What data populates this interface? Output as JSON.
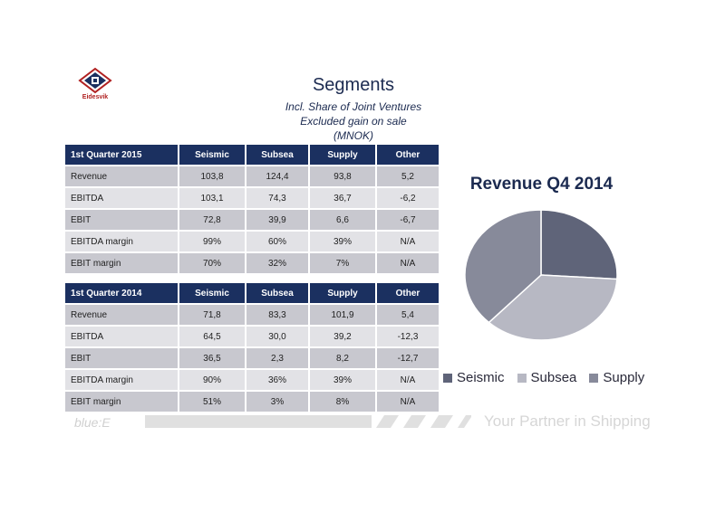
{
  "logo": {
    "text": "Eidesvik"
  },
  "header": {
    "title": "Segments",
    "subtitle_lines": [
      "Incl. Share of Joint Ventures",
      "Excluded gain on sale",
      "(MNOK)"
    ]
  },
  "table_2015": {
    "headers": [
      "1st Quarter 2015",
      "Seismic",
      "Subsea",
      "Supply",
      "Other"
    ],
    "rows": [
      [
        "Revenue",
        "103,8",
        "124,4",
        "93,8",
        "5,2"
      ],
      [
        "EBITDA",
        "103,1",
        "74,3",
        "36,7",
        "-6,2"
      ],
      [
        "EBIT",
        "72,8",
        "39,9",
        "6,6",
        "-6,7"
      ],
      [
        "EBITDA margin",
        "99%",
        "60%",
        "39%",
        "N/A"
      ],
      [
        "EBIT margin",
        "70%",
        "32%",
        "7%",
        "N/A"
      ]
    ]
  },
  "table_2014": {
    "headers": [
      "1st Quarter 2014",
      "Seismic",
      "Subsea",
      "Supply",
      "Other"
    ],
    "rows": [
      [
        "Revenue",
        "71,8",
        "83,3",
        "101,9",
        "5,4"
      ],
      [
        "EBITDA",
        "64,5",
        "30,0",
        "39,2",
        "-12,3"
      ],
      [
        "EBIT",
        "36,5",
        "2,3",
        "8,2",
        "-12,7"
      ],
      [
        "EBITDA margin",
        "90%",
        "36%",
        "39%",
        "N/A"
      ],
      [
        "EBIT margin",
        "51%",
        "3%",
        "8%",
        "N/A"
      ]
    ]
  },
  "chart_data": {
    "type": "pie",
    "title": "Revenue Q4 2014",
    "categories": [
      "Seismic",
      "Subsea",
      "Supply"
    ],
    "values": [
      26,
      36,
      38
    ],
    "colors": [
      "#5f6479",
      "#b7b8c3",
      "#878a9a"
    ],
    "legend_position": "bottom"
  },
  "footer": {
    "brand": "blue:E",
    "tagline": "Your Partner in Shipping"
  }
}
